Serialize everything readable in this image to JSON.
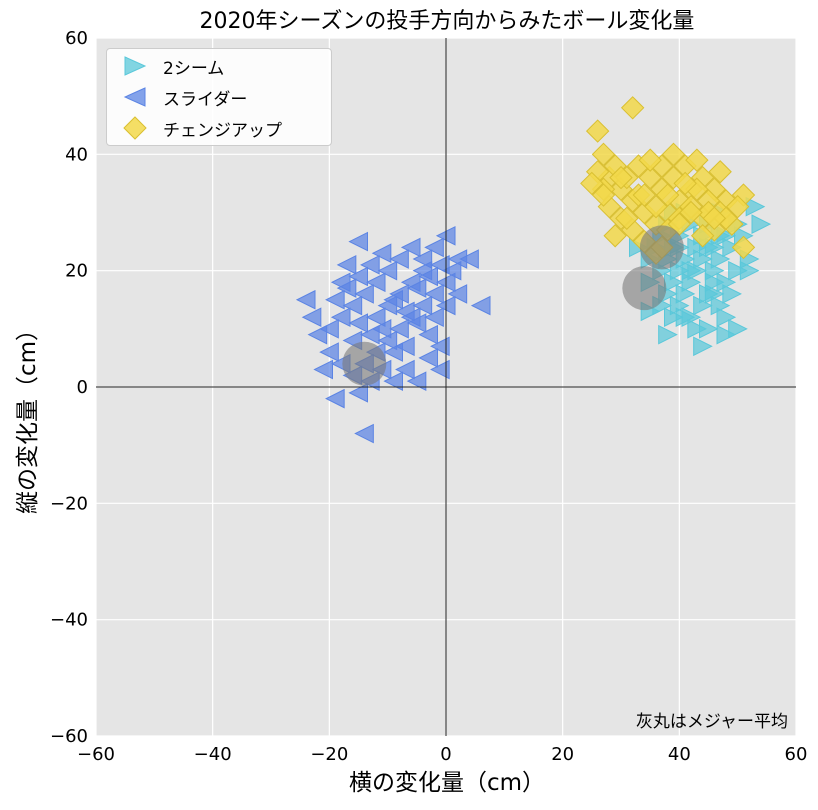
{
  "chart_data": {
    "type": "scatter",
    "title": "2020年シーズンの投手方向からみたボール変化量",
    "xlabel": "横の変化量（cm）",
    "ylabel": "縦の変化量（cm）",
    "xlim": [
      -60,
      60
    ],
    "ylim": [
      -60,
      60
    ],
    "xticks": [
      "−60",
      "−40",
      "−20",
      "0",
      "20",
      "40",
      "60"
    ],
    "yticks": [
      "60",
      "40",
      "20",
      "0",
      "−20",
      "−40",
      "−60"
    ],
    "grid": true,
    "legend_position": "top-left",
    "annotation": "灰丸はメジャー平均",
    "series": [
      {
        "name": "2シーム",
        "marker": "triangle-right",
        "color": "#5ac8da",
        "points": [
          [
            38,
            22
          ],
          [
            40,
            24
          ],
          [
            42,
            20
          ],
          [
            44,
            22
          ],
          [
            46,
            18
          ],
          [
            39,
            18
          ],
          [
            41,
            16
          ],
          [
            43,
            20
          ],
          [
            45,
            24
          ],
          [
            47,
            22
          ],
          [
            37,
            20
          ],
          [
            38,
            16
          ],
          [
            40,
            14
          ],
          [
            42,
            12
          ],
          [
            44,
            14
          ],
          [
            46,
            16
          ],
          [
            48,
            18
          ],
          [
            50,
            20
          ],
          [
            36,
            24
          ],
          [
            38,
            28
          ],
          [
            40,
            26
          ],
          [
            42,
            28
          ],
          [
            44,
            26
          ],
          [
            46,
            24
          ],
          [
            48,
            26
          ],
          [
            50,
            28
          ],
          [
            52,
            22
          ],
          [
            47,
            14
          ],
          [
            45,
            10
          ],
          [
            43,
            10
          ],
          [
            41,
            12
          ],
          [
            39,
            12
          ],
          [
            37,
            14
          ],
          [
            35,
            18
          ],
          [
            35,
            22
          ],
          [
            37,
            26
          ],
          [
            39,
            30
          ],
          [
            41,
            30
          ],
          [
            43,
            30
          ],
          [
            45,
            28
          ],
          [
            47,
            30
          ],
          [
            49,
            24
          ],
          [
            51,
            26
          ],
          [
            53,
            31
          ],
          [
            44,
            7
          ],
          [
            38,
            9
          ],
          [
            35,
            13
          ],
          [
            48,
            12
          ],
          [
            50,
            10
          ],
          [
            52,
            20
          ],
          [
            49,
            16
          ],
          [
            46,
            20
          ],
          [
            42,
            18
          ],
          [
            40,
            20
          ],
          [
            43,
            24
          ],
          [
            45,
            16
          ],
          [
            41,
            22
          ],
          [
            39,
            24
          ],
          [
            47,
            26
          ],
          [
            33,
            24
          ],
          [
            54,
            28
          ],
          [
            48,
            9
          ]
        ]
      },
      {
        "name": "スライダー",
        "marker": "triangle-left",
        "color": "#5b84e4",
        "points": [
          [
            -20,
            10
          ],
          [
            -18,
            12
          ],
          [
            -16,
            14
          ],
          [
            -14,
            16
          ],
          [
            -12,
            18
          ],
          [
            -10,
            20
          ],
          [
            -8,
            22
          ],
          [
            -6,
            24
          ],
          [
            -4,
            22
          ],
          [
            -2,
            24
          ],
          [
            0,
            26
          ],
          [
            -19,
            15
          ],
          [
            -17,
            17
          ],
          [
            -15,
            19
          ],
          [
            -13,
            21
          ],
          [
            -11,
            23
          ],
          [
            -9,
            15
          ],
          [
            -7,
            13
          ],
          [
            -5,
            11
          ],
          [
            -3,
            9
          ],
          [
            -1,
            7
          ],
          [
            -20,
            6
          ],
          [
            -18,
            4
          ],
          [
            -16,
            2
          ],
          [
            -14,
            4
          ],
          [
            -12,
            6
          ],
          [
            -10,
            8
          ],
          [
            -8,
            10
          ],
          [
            -6,
            12
          ],
          [
            -4,
            14
          ],
          [
            -2,
            16
          ],
          [
            0,
            18
          ],
          [
            -22,
            9
          ],
          [
            -21,
            3
          ],
          [
            -19,
            -2
          ],
          [
            -15,
            -1
          ],
          [
            -13,
            1
          ],
          [
            -11,
            3
          ],
          [
            -9,
            1
          ],
          [
            -7,
            3
          ],
          [
            -5,
            1
          ],
          [
            -3,
            5
          ],
          [
            -1,
            3
          ],
          [
            -14,
            -8
          ],
          [
            -16,
            8
          ],
          [
            -18,
            18
          ],
          [
            -12,
            12
          ],
          [
            -10,
            14
          ],
          [
            -8,
            16
          ],
          [
            -6,
            18
          ],
          [
            -4,
            20
          ],
          [
            -2,
            12
          ],
          [
            0,
            14
          ],
          [
            2,
            16
          ],
          [
            2,
            22
          ],
          [
            4,
            22
          ],
          [
            6,
            14
          ],
          [
            -23,
            12
          ],
          [
            -24,
            15
          ],
          [
            -15,
            25
          ],
          [
            -11,
            10
          ],
          [
            -9,
            6
          ],
          [
            -7,
            7
          ],
          [
            -5,
            17
          ],
          [
            -3,
            19
          ],
          [
            -1,
            21
          ],
          [
            1,
            20
          ],
          [
            -17,
            21
          ],
          [
            -13,
            9
          ],
          [
            -15,
            11
          ]
        ]
      },
      {
        "name": "チェンジアップ",
        "marker": "diamond",
        "color": "#f2d84a",
        "points": [
          [
            26,
            44
          ],
          [
            27,
            40
          ],
          [
            28,
            36
          ],
          [
            30,
            34
          ],
          [
            32,
            32
          ],
          [
            34,
            30
          ],
          [
            36,
            28
          ],
          [
            38,
            30
          ],
          [
            40,
            32
          ],
          [
            42,
            34
          ],
          [
            44,
            36
          ],
          [
            46,
            34
          ],
          [
            48,
            32
          ],
          [
            27,
            34
          ],
          [
            29,
            38
          ],
          [
            31,
            36
          ],
          [
            33,
            38
          ],
          [
            35,
            36
          ],
          [
            37,
            38
          ],
          [
            39,
            36
          ],
          [
            41,
            38
          ],
          [
            43,
            34
          ],
          [
            45,
            32
          ],
          [
            47,
            30
          ],
          [
            49,
            28
          ],
          [
            51,
            33
          ],
          [
            26,
            37
          ],
          [
            28,
            31
          ],
          [
            30,
            29
          ],
          [
            32,
            27
          ],
          [
            34,
            25
          ],
          [
            36,
            23
          ],
          [
            38,
            27
          ],
          [
            40,
            29
          ],
          [
            42,
            31
          ],
          [
            44,
            29
          ],
          [
            46,
            27
          ],
          [
            48,
            29
          ],
          [
            50,
            31
          ],
          [
            29,
            26
          ],
          [
            31,
            29
          ],
          [
            33,
            33
          ],
          [
            35,
            39
          ],
          [
            37,
            34
          ],
          [
            39,
            40
          ],
          [
            41,
            35
          ],
          [
            43,
            39
          ],
          [
            45,
            30
          ],
          [
            47,
            37
          ],
          [
            25,
            35
          ],
          [
            27,
            33
          ],
          [
            32,
            48
          ],
          [
            51,
            24
          ],
          [
            44,
            26
          ],
          [
            36,
            31
          ],
          [
            38,
            33
          ],
          [
            40,
            28
          ],
          [
            42,
            30
          ],
          [
            30,
            36
          ],
          [
            34,
            33
          ],
          [
            37,
            24
          ],
          [
            46,
            29
          ]
        ]
      }
    ],
    "mlb_averages": [
      [
        -14,
        4
      ],
      [
        34,
        17
      ],
      [
        37,
        24
      ]
    ]
  }
}
